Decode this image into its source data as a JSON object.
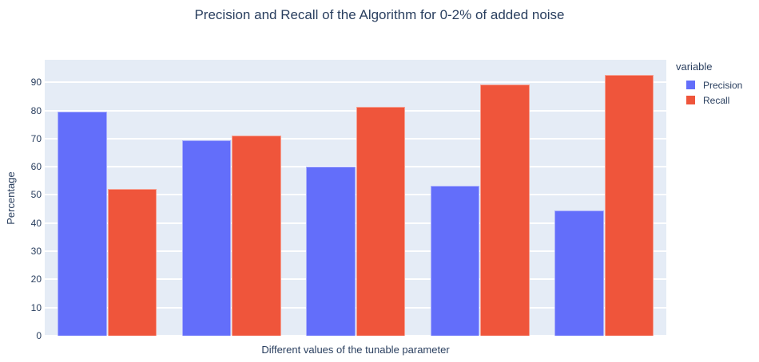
{
  "chart_data": {
    "type": "bar",
    "title": "Precision and Recall of the Algorithm for 0-2% of added noise",
    "xlabel": "Different values of the tunable parameter",
    "ylabel": "Percentage",
    "legend_title": "variable",
    "legend_position": "right",
    "grid": true,
    "x_tick_labels": [],
    "yticks": [
      0,
      10,
      20,
      30,
      40,
      50,
      60,
      70,
      80,
      90
    ],
    "ylim": [
      0,
      98
    ],
    "colors": {
      "plot_background": "#E5ECF6",
      "gridline": "#FFFFFF",
      "text": "#2a3f5f"
    },
    "series": [
      {
        "name": "Precision",
        "color": "#636EFA",
        "values": [
          79.5,
          69.3,
          60.1,
          53.2,
          44.6
        ]
      },
      {
        "name": "Recall",
        "color": "#EF553B",
        "values": [
          52.0,
          71.1,
          81.4,
          89.1,
          92.7
        ]
      }
    ]
  }
}
